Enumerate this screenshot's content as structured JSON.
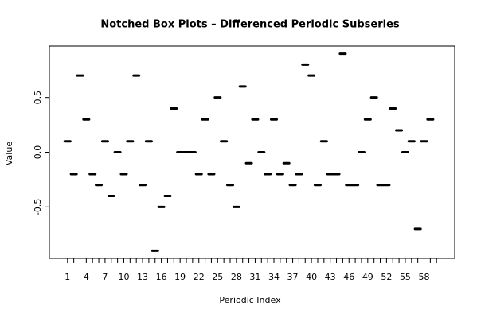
{
  "chart_data": {
    "type": "box",
    "title": "Notched Box Plots – Differenced Periodic Subseries",
    "x_label": "Periodic Index",
    "y_label": "Value",
    "categories": [
      "1",
      null,
      null,
      "4",
      null,
      null,
      "7",
      null,
      null,
      "10",
      null,
      null,
      "13",
      null,
      null,
      "16",
      null,
      null,
      "19",
      null,
      null,
      "22",
      null,
      null,
      "25",
      null,
      null,
      "28",
      null,
      null,
      "31",
      null,
      null,
      "34",
      null,
      null,
      "37",
      null,
      null,
      "40",
      null,
      null,
      "43",
      null,
      null,
      "46",
      null,
      null,
      "49",
      null,
      null,
      "52",
      null,
      null,
      "55",
      null,
      null,
      "58",
      null,
      null
    ],
    "values": [
      0.1,
      -0.2,
      0.7,
      0.3,
      -0.2,
      -0.3,
      0.1,
      -0.4,
      0.0,
      -0.2,
      0.1,
      0.7,
      -0.3,
      0.1,
      -0.9,
      -0.5,
      -0.4,
      0.4,
      0.0,
      0.0,
      0.0,
      -0.2,
      0.3,
      -0.2,
      0.5,
      0.1,
      -0.3,
      -0.5,
      0.6,
      -0.1,
      0.3,
      0.0,
      -0.2,
      0.3,
      -0.2,
      -0.1,
      -0.3,
      -0.2,
      0.8,
      0.7,
      -0.3,
      0.1,
      -0.2,
      -0.2,
      0.9,
      -0.3,
      -0.3,
      0.0,
      0.3,
      0.5,
      -0.3,
      -0.3,
      0.4,
      0.2,
      0.0,
      0.1,
      -0.7,
      0.1,
      0.3,
      null
    ],
    "color": "#000000",
    "ylim": [
      -0.97,
      0.97
    ],
    "yticks": [
      -0.5,
      {
        "value": 0,
        "label": "0.0"
      },
      0.5
    ]
  }
}
